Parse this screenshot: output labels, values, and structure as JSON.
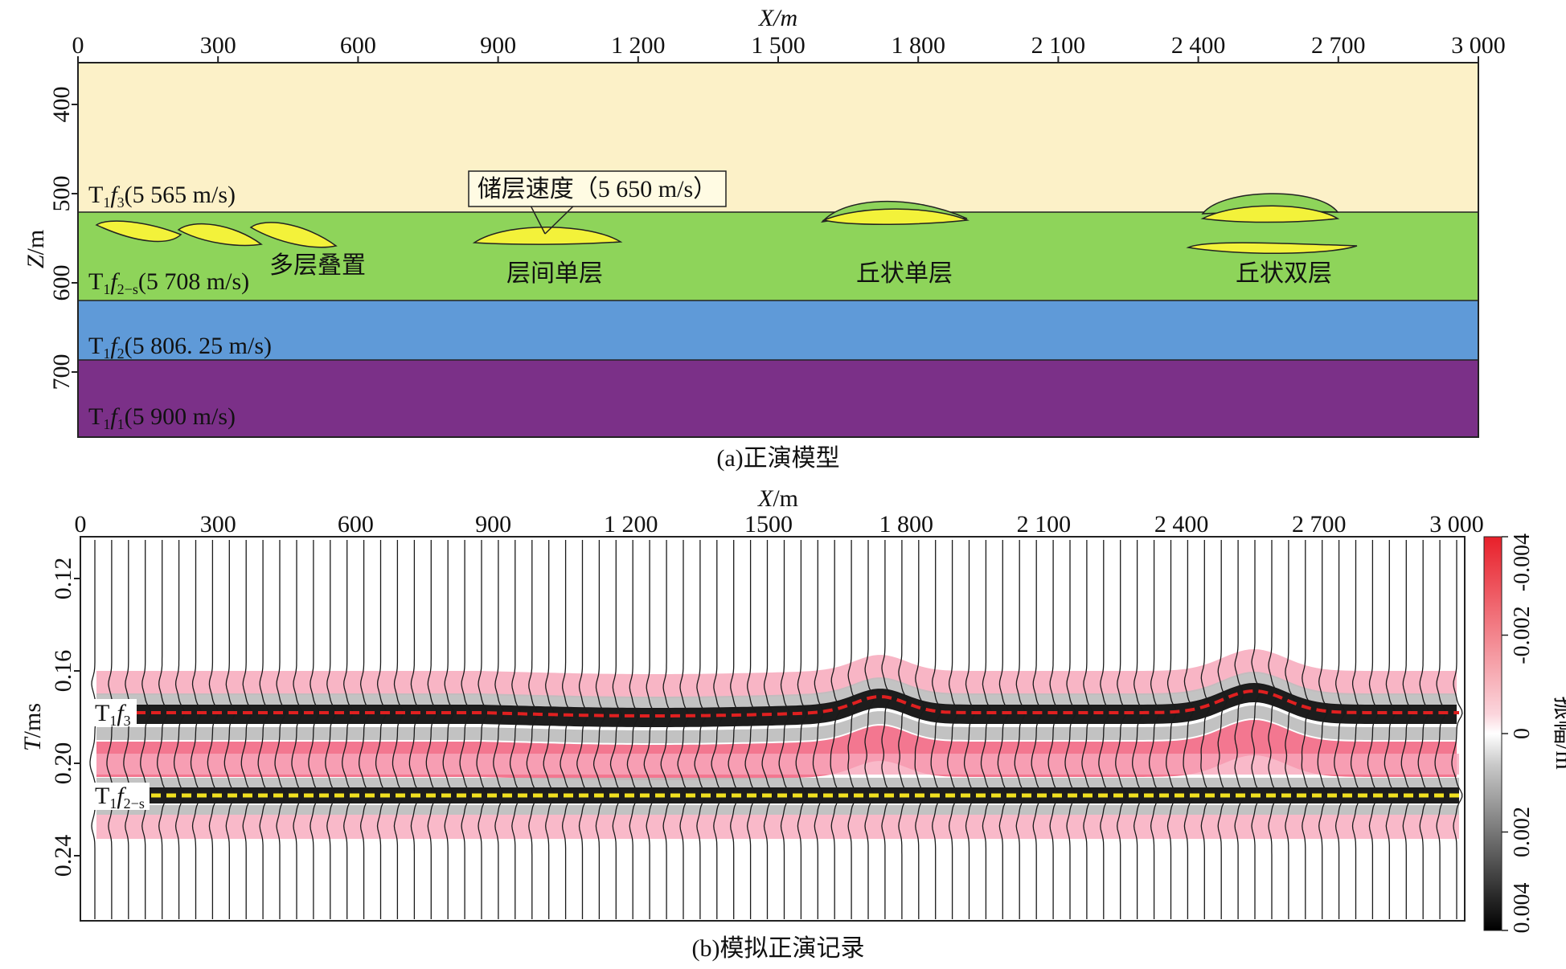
{
  "panel_a": {
    "x_label": "X/m",
    "z_label": "Z/m",
    "caption": "(a)正演模型",
    "x_ticks": [
      "0",
      "300",
      "600",
      "900",
      "1 200",
      "1 500",
      "1 800",
      "2 100",
      "2 400",
      "2 700",
      "3 000"
    ],
    "z_ticks": [
      "400",
      "500",
      "600",
      "700"
    ],
    "layers": [
      {
        "name": "T1f3",
        "prefix": "T",
        "sub1": "1",
        "f": "f",
        "sub2": "3",
        "velocity": "(5 565 m/s)",
        "color": "#fcf1c8"
      },
      {
        "name": "T1f2-s",
        "prefix": "T",
        "sub1": "1",
        "f": "f",
        "sub2": "2−s",
        "velocity": "(5 708 m/s)",
        "color": "#8ed45a"
      },
      {
        "name": "T1f2",
        "prefix": "T",
        "sub1": "1",
        "f": "f",
        "sub2": "2",
        "velocity": "(5 806. 25 m/s)",
        "color": "#5f9ad8"
      },
      {
        "name": "T1f1",
        "prefix": "T",
        "sub1": "1",
        "f": "f",
        "sub2": "1",
        "velocity": "(5 900 m/s)",
        "color": "#7b3088"
      }
    ],
    "reservoir_callout": "储层速度（5 650 m/s）",
    "reservoir_color": "#f3f23a",
    "group_labels": [
      "多层叠置",
      "层间单层",
      "丘状单层",
      "丘状双层"
    ]
  },
  "panel_b": {
    "x_label": "X/m",
    "t_label": "T/ms",
    "caption": "(b)模拟正演记录",
    "x_ticks": [
      "0",
      "300",
      "600",
      "900",
      "1 200",
      "1500",
      "1 800",
      "2 100",
      "2 400",
      "2 700",
      "3 000"
    ],
    "t_ticks": [
      "0.12",
      "0.16",
      "0.20",
      "0.24"
    ],
    "horizons": [
      {
        "name": "T1f3",
        "prefix": "T",
        "sub1": "1",
        "f": "f",
        "sub2": "3",
        "line_color": "#e02020"
      },
      {
        "name": "T1f2-s",
        "prefix": "T",
        "sub1": "1",
        "f": "f",
        "sub2": "2−s",
        "line_color": "#f0e020"
      }
    ],
    "colorbar": {
      "title": "振幅/m",
      "ticks": [
        "-0.004",
        "-0.002",
        "0",
        "0.002",
        "0.004"
      ],
      "colors": [
        "#e8202a",
        "#ffffff",
        "#000000"
      ]
    }
  }
}
